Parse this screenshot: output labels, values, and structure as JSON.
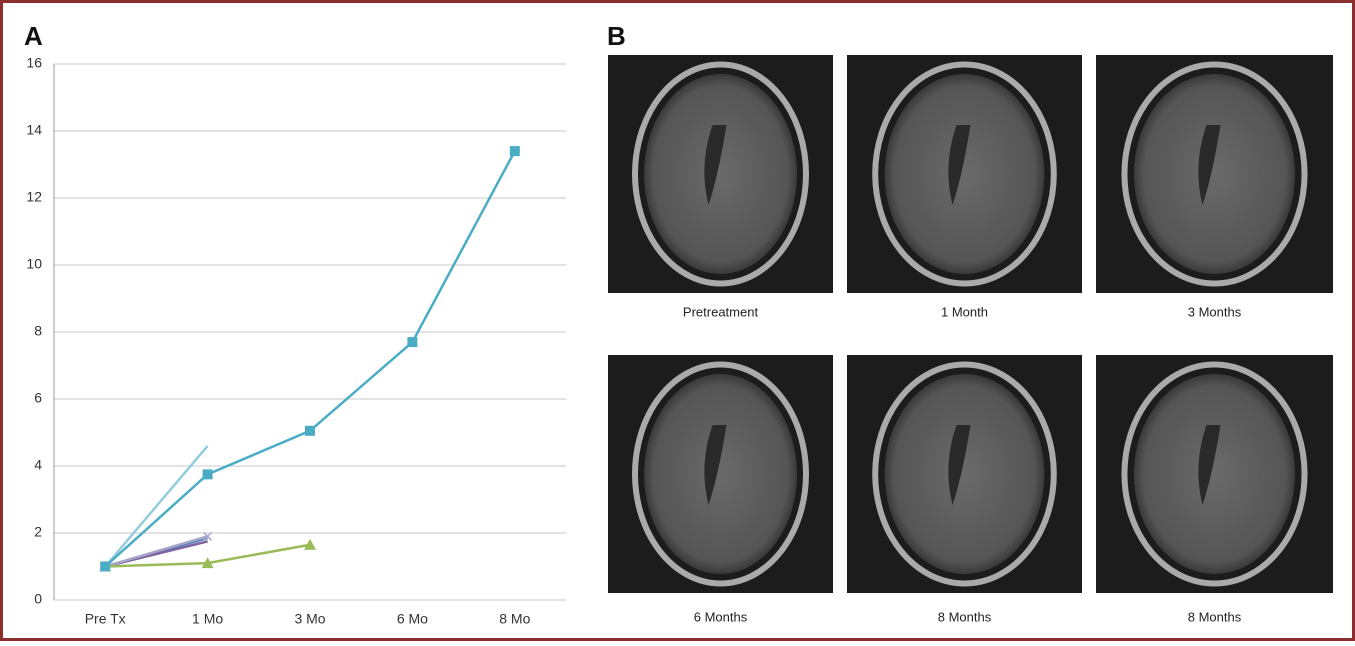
{
  "chart_data": {
    "type": "line",
    "panel_label": "A",
    "categories": [
      "Pre Tx",
      "1 Mo",
      "3 Mo",
      "6 Mo",
      "8 Mo"
    ],
    "series": [
      {
        "color": "#93cddd",
        "marker": "none",
        "values": [
          1,
          4.6,
          null,
          null,
          null
        ]
      },
      {
        "color": "#4f81bd",
        "marker": "none",
        "values": [
          1,
          1.85,
          null,
          null,
          null
        ]
      },
      {
        "color": "#8064a2",
        "marker": "none",
        "values": [
          1,
          1.75,
          null,
          null,
          null
        ]
      },
      {
        "color": "#a5a5c8",
        "marker": "x",
        "values": [
          1,
          1.9,
          null,
          null,
          null
        ]
      },
      {
        "color": "#9bbb59",
        "marker": "triangle",
        "values": [
          1,
          1.1,
          1.65,
          null,
          null
        ]
      },
      {
        "color": "#4bacc6",
        "marker": "square",
        "values": [
          1,
          3.75,
          5.05,
          7.7,
          13.4
        ]
      }
    ],
    "ylim": [
      0,
      16
    ],
    "yticks": [
      0,
      2,
      4,
      6,
      8,
      10,
      12,
      14,
      16
    ],
    "grid": true
  },
  "panel_b": {
    "label": "B",
    "captions": [
      "Pretreatment",
      "1 Month",
      "3 Months",
      "6 Months",
      "8 Months",
      "8 Months"
    ]
  }
}
